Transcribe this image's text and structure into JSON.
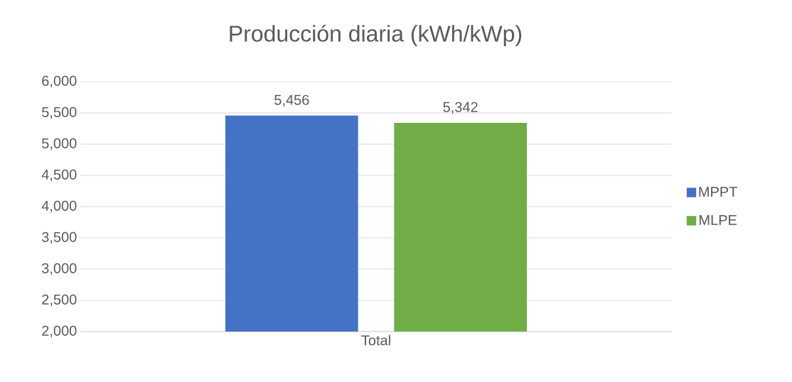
{
  "chart_data": {
    "type": "bar",
    "title": "Producción diaria  (kWh/kWp)",
    "categories": [
      "Total"
    ],
    "series": [
      {
        "name": "MPPT",
        "color": "#4472c4",
        "values": [
          5456
        ],
        "value_labels": [
          "5,456"
        ]
      },
      {
        "name": "MLPE",
        "color": "#70ad47",
        "values": [
          5342
        ],
        "value_labels": [
          "5,342"
        ]
      }
    ],
    "ylim": [
      2000,
      6000
    ],
    "yticks": [
      {
        "value": 2000,
        "label": "2,000"
      },
      {
        "value": 2500,
        "label": "2,500"
      },
      {
        "value": 3000,
        "label": "3,000"
      },
      {
        "value": 3500,
        "label": "3,500"
      },
      {
        "value": 4000,
        "label": "4,000"
      },
      {
        "value": 4500,
        "label": "4,500"
      },
      {
        "value": 5000,
        "label": "5,000"
      },
      {
        "value": 5500,
        "label": "5,500"
      },
      {
        "value": 6000,
        "label": "6,000"
      }
    ],
    "grid": "y",
    "legend": "right"
  }
}
